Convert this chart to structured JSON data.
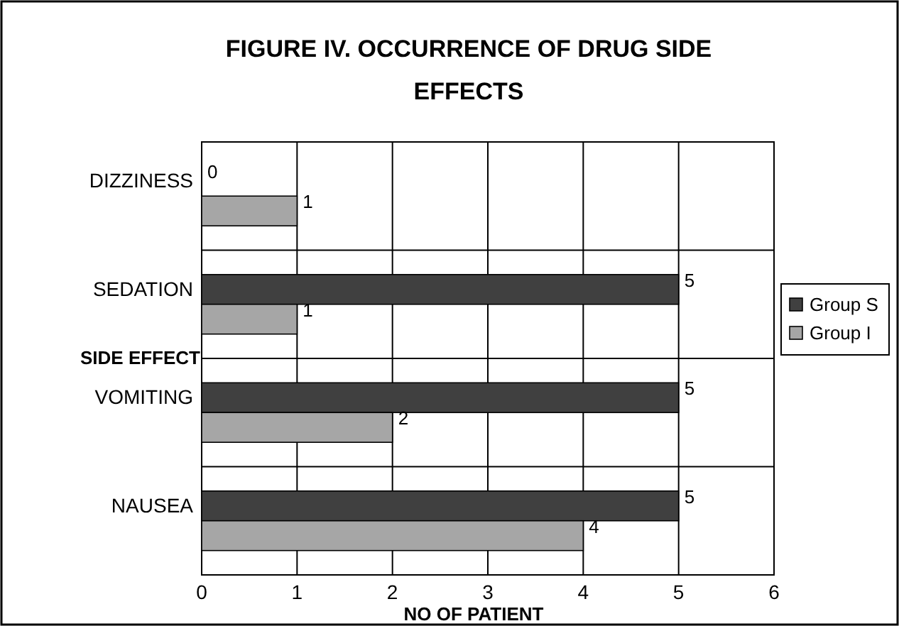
{
  "chart_data": {
    "type": "bar",
    "orientation": "horizontal",
    "title": "FIGURE IV. OCCURRENCE OF DRUG SIDE EFFECTS",
    "xlabel": "NO OF PATIENT",
    "ylabel": "SIDE EFFECT",
    "categories": [
      "DIZZINESS",
      "SEDATION",
      "VOMITING",
      "NAUSEA"
    ],
    "series": [
      {
        "name": "Group S",
        "color": "#404040",
        "values": [
          0,
          5,
          5,
          5
        ]
      },
      {
        "name": "Group I",
        "color": "#a6a6a6",
        "values": [
          1,
          1,
          2,
          4
        ]
      }
    ],
    "xlim": [
      0,
      6
    ],
    "xticks": [
      0,
      1,
      2,
      3,
      4,
      5,
      6
    ],
    "grid": true,
    "legend": "right",
    "data_labels": true
  }
}
